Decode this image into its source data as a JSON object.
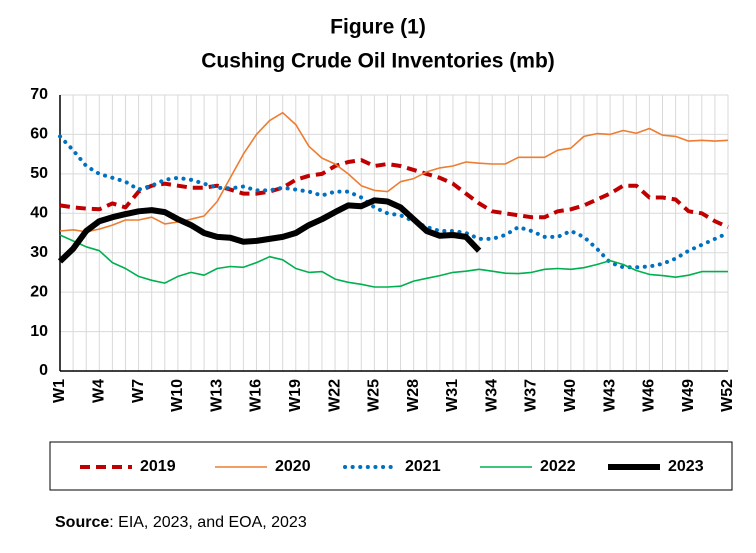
{
  "chart_data": {
    "type": "line",
    "title": "Figure (1)",
    "subtitle": "Cushing Crude Oil Inventories (mb)",
    "source_label": "Source",
    "source_text": ": EIA, 2023, and EOA, 2023",
    "categories": [
      "W1",
      null,
      null,
      "W4",
      null,
      null,
      "W7",
      null,
      null,
      "W10",
      null,
      null,
      "W13",
      null,
      null,
      "W16",
      null,
      null,
      "W19",
      null,
      null,
      "W22",
      null,
      null,
      "W25",
      null,
      null,
      "W28",
      null,
      null,
      "W31",
      null,
      null,
      "W34",
      null,
      null,
      "W37",
      null,
      null,
      "W40",
      null,
      null,
      "W43",
      null,
      null,
      "W46",
      null,
      null,
      "W49",
      null,
      null,
      "W52"
    ],
    "ylim": [
      0,
      70
    ],
    "yticks": [
      0,
      10,
      20,
      30,
      40,
      50,
      60,
      70
    ],
    "grid": true,
    "series": [
      {
        "name": "2019",
        "color": "#c00000",
        "style": "dashed",
        "width": 4,
        "values": [
          42,
          41.5,
          41.2,
          41,
          42.5,
          41.5,
          45.5,
          47,
          47.5,
          47,
          46.5,
          46.5,
          47,
          46,
          45,
          45,
          45.5,
          46.5,
          48.5,
          49.5,
          50,
          52,
          53,
          53.5,
          52,
          52.5,
          52,
          51,
          50,
          49,
          47.5,
          45,
          42.5,
          40.5,
          40,
          39.5,
          39,
          39,
          40.5,
          41,
          42,
          43.5,
          45,
          47,
          47,
          44,
          44,
          43.5,
          40.5,
          40,
          38,
          36.5
        ]
      },
      {
        "name": "2020",
        "color": "#ed7d31",
        "style": "solid",
        "width": 1.6,
        "values": [
          35.5,
          35.8,
          35.3,
          36,
          37,
          38.3,
          38.3,
          39,
          37.3,
          37.8,
          38.5,
          39.3,
          43,
          49,
          55,
          60,
          63.5,
          65.5,
          62.5,
          57,
          54,
          52.5,
          50,
          47,
          45.8,
          45.5,
          48,
          48.8,
          50.5,
          51.5,
          52,
          53,
          52.7,
          52.5,
          52.5,
          54.2,
          54.2,
          54.2,
          56,
          56.5,
          59.5,
          60.2,
          60,
          61,
          60.3,
          61.5,
          59.8,
          59.5,
          58.3,
          58.5,
          58.3,
          58.5
        ]
      },
      {
        "name": "2021",
        "color": "#0070c0",
        "style": "dotted",
        "width": 4,
        "values": [
          59.5,
          56,
          52,
          50,
          49,
          48,
          46,
          47,
          48.5,
          49,
          48.5,
          47.5,
          46.5,
          46.3,
          46.8,
          45.8,
          45.8,
          46.5,
          46,
          45.5,
          44.5,
          45.5,
          45.5,
          44,
          41.5,
          40,
          39.5,
          38,
          36.5,
          35.5,
          35.5,
          35,
          33.5,
          33.5,
          34.5,
          36.5,
          35.5,
          34,
          34,
          35.5,
          34,
          31,
          27.5,
          26.3,
          26.3,
          26.5,
          27.2,
          28.5,
          30.5,
          32,
          33.5,
          35
        ]
      },
      {
        "name": "2022",
        "color": "#00b050",
        "style": "solid",
        "width": 1.6,
        "values": [
          34.5,
          33,
          31.5,
          30.5,
          27.5,
          26,
          24,
          23,
          22.3,
          24,
          25,
          24.3,
          26,
          26.5,
          26.3,
          27.5,
          29,
          28.2,
          26,
          25,
          25.2,
          23.3,
          22.5,
          22,
          21.3,
          21.3,
          21.5,
          22.8,
          23.5,
          24.2,
          25,
          25.3,
          25.8,
          25.3,
          24.8,
          24.7,
          25,
          25.8,
          26,
          25.8,
          26.2,
          27,
          28,
          27,
          25.5,
          24.5,
          24.2,
          23.8,
          24.3,
          25.2,
          25.2,
          25.2
        ]
      },
      {
        "name": "2023",
        "color": "#000000",
        "style": "solid",
        "width": 6,
        "values": [
          27.8,
          31,
          35.5,
          38,
          39,
          39.8,
          40.5,
          40.8,
          40.3,
          38.5,
          37,
          35,
          34,
          33.8,
          32.8,
          33,
          33.5,
          34,
          35,
          37,
          38.5,
          40.3,
          42,
          41.8,
          43.3,
          43,
          41.5,
          38.5,
          35.5,
          34.3,
          34.5,
          34,
          30.5,
          null,
          null,
          null,
          null,
          null,
          null,
          null,
          null,
          null,
          null,
          null,
          null,
          null,
          null,
          null,
          null,
          null,
          null,
          null
        ]
      }
    ]
  }
}
